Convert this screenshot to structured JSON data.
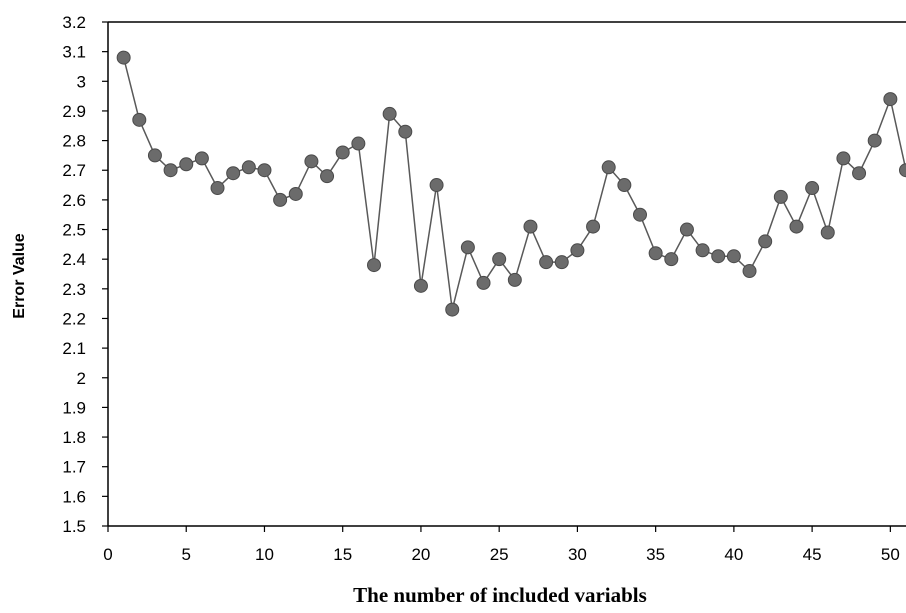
{
  "chart_data": {
    "type": "line",
    "title": "",
    "xlabel": "The number of included variabls",
    "ylabel": "Error Value",
    "xlim": [
      0,
      51
    ],
    "ylim": [
      1.5,
      3.2
    ],
    "xticks": [
      0,
      5,
      10,
      15,
      20,
      25,
      30,
      35,
      40,
      45,
      50
    ],
    "yticks": [
      1.5,
      1.6,
      1.7,
      1.8,
      1.9,
      2,
      2.1,
      2.2,
      2.3,
      2.4,
      2.5,
      2.6,
      2.7,
      2.8,
      2.9,
      3,
      3.1,
      3.2
    ],
    "grid": false,
    "legend": "none",
    "colors": {
      "line": "#595959",
      "marker": "#6b6b6b",
      "marker_edge": "#4a4a4a",
      "axis": "#000000"
    },
    "series": [
      {
        "x": [
          1,
          2,
          3,
          4,
          5,
          6,
          7,
          8,
          9,
          10,
          11,
          12,
          13,
          14,
          15,
          16,
          17,
          18,
          19,
          20,
          21,
          22,
          23,
          24,
          25,
          26,
          27,
          28,
          29,
          30,
          31,
          32,
          33,
          34,
          35,
          36,
          37,
          38,
          39,
          40,
          41,
          42,
          43,
          44,
          45,
          46,
          47,
          48,
          49,
          50,
          51
        ],
        "values": [
          3.08,
          2.87,
          2.75,
          2.7,
          2.72,
          2.74,
          2.64,
          2.69,
          2.71,
          2.7,
          2.6,
          2.62,
          2.73,
          2.68,
          2.76,
          2.79,
          2.38,
          2.89,
          2.83,
          2.31,
          2.65,
          2.23,
          2.44,
          2.32,
          2.4,
          2.33,
          2.51,
          2.39,
          2.39,
          2.43,
          2.51,
          2.71,
          2.65,
          2.55,
          2.42,
          2.4,
          2.5,
          2.43,
          2.41,
          2.41,
          2.36,
          2.46,
          2.61,
          2.51,
          2.64,
          2.49,
          2.74,
          2.69,
          2.8,
          2.94,
          2.7
        ]
      }
    ]
  }
}
